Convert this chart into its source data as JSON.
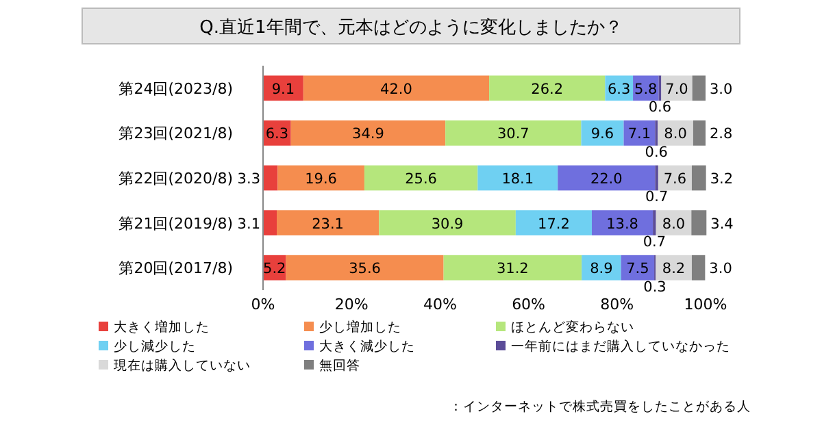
{
  "chart_data": {
    "type": "bar",
    "orientation": "horizontal",
    "stacked": true,
    "title": "Q.直近1年間で、元本はどのように変化しましたか？",
    "categories": [
      "第24回(2023/8)",
      "第23回(2021/8)",
      "第22回(2020/8)",
      "第21回(2019/8)",
      "第20回(2017/8)"
    ],
    "series": [
      {
        "name": "大きく増加した",
        "color": "#e8403c",
        "values": [
          9.1,
          6.3,
          3.3,
          3.1,
          5.2
        ],
        "value_labels": [
          "9.1",
          "6.3",
          "3.3",
          "3.1",
          "5.2"
        ]
      },
      {
        "name": "少し増加した",
        "color": "#f58d4f",
        "values": [
          42.0,
          34.9,
          19.6,
          23.1,
          35.6
        ],
        "value_labels": [
          "42.0",
          "34.9",
          "19.6",
          "23.1",
          "35.6"
        ]
      },
      {
        "name": "ほとんど変わらない",
        "color": "#b5e67c",
        "values": [
          26.2,
          30.7,
          25.6,
          30.9,
          31.2
        ],
        "value_labels": [
          "26.2",
          "30.7",
          "25.6",
          "30.9",
          "31.2"
        ]
      },
      {
        "name": "少し減少した",
        "color": "#6fd0f2",
        "values": [
          6.3,
          9.6,
          18.1,
          17.2,
          8.9
        ],
        "value_labels": [
          "6.3",
          "9.6",
          "18.1",
          "17.2",
          "8.9"
        ]
      },
      {
        "name": "大きく減少した",
        "color": "#6f6fde",
        "values": [
          5.8,
          7.1,
          22.0,
          13.8,
          7.5
        ],
        "value_labels": [
          "5.8",
          "7.1",
          "22.0",
          "13.8",
          "7.5"
        ]
      },
      {
        "name": "一年前にはまだ購入していなかった",
        "color": "#5b4c98",
        "values": [
          0.6,
          0.6,
          0.7,
          0.7,
          0.3
        ],
        "value_labels": [
          "0.6",
          "0.6",
          "0.7",
          "0.7",
          "0.3"
        ]
      },
      {
        "name": "現在は購入していない",
        "color": "#d9d9d9",
        "values": [
          7.0,
          8.0,
          7.6,
          8.0,
          8.2
        ],
        "value_labels": [
          "7.0",
          "8.0",
          "7.6",
          "8.0",
          "8.2"
        ]
      },
      {
        "name": "無回答",
        "color": "#7f7f7f",
        "values": [
          3.0,
          2.8,
          3.2,
          3.4,
          3.0
        ],
        "value_labels": [
          "3.0",
          "2.8",
          "3.2",
          "3.4",
          "3.0"
        ]
      }
    ],
    "xlim": [
      0,
      100
    ],
    "xticks": [
      {
        "value": 0,
        "label": "0%"
      },
      {
        "value": 20,
        "label": "20%"
      },
      {
        "value": 40,
        "label": "40%"
      },
      {
        "value": 60,
        "label": "60%"
      },
      {
        "value": 80,
        "label": "80%"
      },
      {
        "value": 100,
        "label": "100%"
      }
    ],
    "legend": "bottom",
    "annotations": [
      "：インターネットで株式売買をしたことがある人"
    ]
  }
}
